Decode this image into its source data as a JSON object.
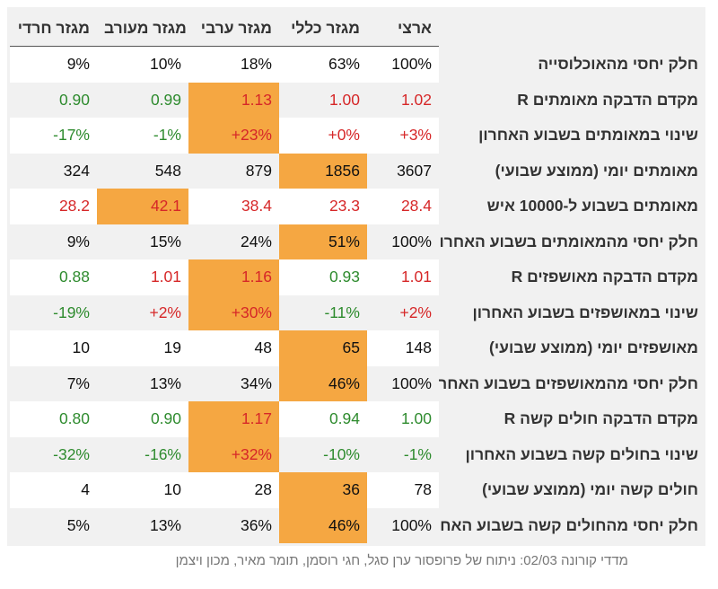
{
  "chart_data": {
    "type": "table",
    "columns": [
      "מגזר חרדי",
      "מגזר מעורב",
      "מגזר ערבי",
      "מגזר כללי",
      "ארצי"
    ],
    "rows": [
      {
        "label": "חלק יחסי מהאוכלוסייה",
        "values": [
          "9%",
          "10%",
          "18%",
          "63%",
          "100%"
        ],
        "colors": [
          "black",
          "black",
          "black",
          "black",
          "black"
        ],
        "highlight": [
          false,
          false,
          false,
          false,
          false
        ]
      },
      {
        "label": "מקדם הדבקה מאומתים R",
        "values": [
          "0.90",
          "0.99",
          "1.13",
          "1.00",
          "1.02"
        ],
        "colors": [
          "green",
          "green",
          "red",
          "red",
          "red"
        ],
        "highlight": [
          false,
          false,
          true,
          false,
          false
        ]
      },
      {
        "label": "שינוי במאומתים בשבוע האחרון",
        "values": [
          "-17%",
          "-1%",
          "+23%",
          "+0%",
          "+3%"
        ],
        "colors": [
          "green",
          "green",
          "red",
          "red",
          "red"
        ],
        "highlight": [
          false,
          false,
          true,
          false,
          false
        ]
      },
      {
        "label": "מאומתים יומי (ממוצע שבועי)",
        "values": [
          "324",
          "548",
          "879",
          "1856",
          "3607"
        ],
        "colors": [
          "black",
          "black",
          "black",
          "black",
          "black"
        ],
        "highlight": [
          false,
          false,
          false,
          true,
          false
        ]
      },
      {
        "label": "מאומתים בשבוע ל-10000 איש",
        "values": [
          "28.2",
          "42.1",
          "38.4",
          "23.3",
          "28.4"
        ],
        "colors": [
          "red",
          "red",
          "red",
          "red",
          "red"
        ],
        "highlight": [
          false,
          true,
          false,
          false,
          false
        ]
      },
      {
        "label": "חלק יחסי מהמאומתים בשבוע האחרון",
        "values": [
          "9%",
          "15%",
          "24%",
          "51%",
          "100%"
        ],
        "colors": [
          "black",
          "black",
          "black",
          "black",
          "black"
        ],
        "highlight": [
          false,
          false,
          false,
          true,
          false
        ]
      },
      {
        "label": "מקדם הדבקה מאושפזים R",
        "values": [
          "0.88",
          "1.01",
          "1.16",
          "0.93",
          "1.01"
        ],
        "colors": [
          "green",
          "red",
          "red",
          "green",
          "red"
        ],
        "highlight": [
          false,
          false,
          true,
          false,
          false
        ]
      },
      {
        "label": "שינוי במאושפזים בשבוע האחרון",
        "values": [
          "-19%",
          "+2%",
          "+30%",
          "-11%",
          "+2%"
        ],
        "colors": [
          "green",
          "red",
          "red",
          "green",
          "red"
        ],
        "highlight": [
          false,
          false,
          true,
          false,
          false
        ]
      },
      {
        "label": "מאושפזים יומי (ממוצע שבועי)",
        "values": [
          "10",
          "19",
          "48",
          "65",
          "148"
        ],
        "colors": [
          "black",
          "black",
          "black",
          "black",
          "black"
        ],
        "highlight": [
          false,
          false,
          false,
          true,
          false
        ]
      },
      {
        "label": "חלק יחסי מהמאושפזים בשבוע האחרון",
        "values": [
          "7%",
          "13%",
          "34%",
          "46%",
          "100%"
        ],
        "colors": [
          "black",
          "black",
          "black",
          "black",
          "black"
        ],
        "highlight": [
          false,
          false,
          false,
          true,
          false
        ]
      },
      {
        "label": "מקדם הדבקה חולים קשה R",
        "values": [
          "0.80",
          "0.90",
          "1.17",
          "0.94",
          "1.00"
        ],
        "colors": [
          "green",
          "green",
          "red",
          "green",
          "green"
        ],
        "highlight": [
          false,
          false,
          true,
          false,
          false
        ]
      },
      {
        "label": "שינוי בחולים קשה בשבוע האחרון",
        "values": [
          "-32%",
          "-16%",
          "+32%",
          "-10%",
          "-1%"
        ],
        "colors": [
          "green",
          "green",
          "red",
          "green",
          "green"
        ],
        "highlight": [
          false,
          false,
          true,
          false,
          false
        ]
      },
      {
        "label": "חולים קשה יומי (ממוצע שבועי)",
        "values": [
          "4",
          "10",
          "28",
          "36",
          "78"
        ],
        "colors": [
          "black",
          "black",
          "black",
          "black",
          "black"
        ],
        "highlight": [
          false,
          false,
          false,
          true,
          false
        ]
      },
      {
        "label": "חלק יחסי מהחולים קשה בשבוע האחרון",
        "values": [
          "5%",
          "13%",
          "36%",
          "46%",
          "100%"
        ],
        "colors": [
          "black",
          "black",
          "black",
          "black",
          "black"
        ],
        "highlight": [
          false,
          false,
          false,
          true,
          false
        ]
      }
    ],
    "highlight_color": "#f5a742",
    "red_color": "#d62728",
    "green_color": "#2e8b2e"
  },
  "caption": "מדדי קורונה 02/03: ניתוח של פרופסור ערן סגל, חגי רוסמן, תומר מאיר, מכון ויצמן"
}
